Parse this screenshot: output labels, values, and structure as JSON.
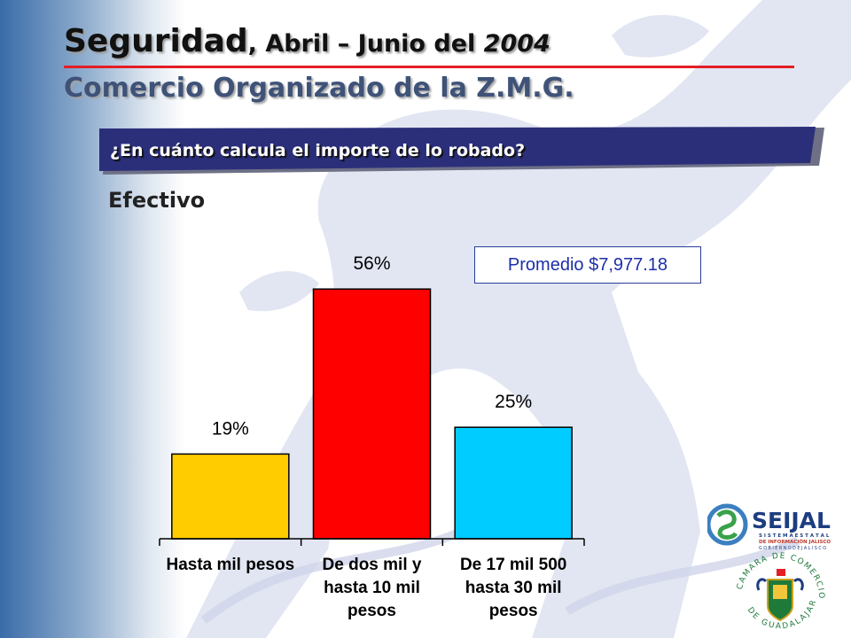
{
  "header": {
    "title_main": "Seguridad",
    "title_rest": ", Abril – Junio del ",
    "title_year": "2004",
    "subtitle": "Comercio Organizado de la Z.M.G."
  },
  "question": "¿En cuánto calcula el importe de lo robado?",
  "section_label": "Efectivo",
  "promedio": "Promedio $7,977.18",
  "colors": {
    "accent_rule": "#e41e25",
    "banner": "#2b2f7a",
    "title_blue": "#3f5278"
  },
  "chart_data": {
    "type": "bar",
    "title": "",
    "categories": [
      [
        "Hasta mil pesos"
      ],
      [
        "De dos mil y",
        "hasta 10 mil",
        "pesos"
      ],
      [
        "De 17 mil 500",
        "hasta 30 mil",
        "pesos"
      ]
    ],
    "values": [
      19,
      56,
      25
    ],
    "value_labels": [
      "19%",
      "56%",
      "25%"
    ],
    "colors": [
      "#ffcc00",
      "#ff0000",
      "#00ccff"
    ],
    "ylim": [
      0,
      62
    ],
    "xlabel": "",
    "ylabel": "",
    "grid": false
  },
  "logos": {
    "seijal_name": "SEIJAL",
    "seijal_line1": "S I S T E M A   E S T A T A L",
    "seijal_line2": "DE INFORMACIÓN JALISCO",
    "seijal_line3": "G O B I E R N O   D E   J A L I S C O",
    "camara_top": "CAMARA DE COMERCIO",
    "camara_bottom": "DE GUADALAJARA"
  }
}
